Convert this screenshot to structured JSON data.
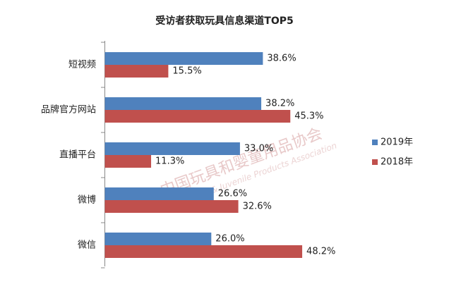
{
  "chart_data": {
    "type": "hbar",
    "title": "受访者获取玩具信息渠道TOP5",
    "categories": [
      "短视频",
      "品牌官方网站",
      "直播平台",
      "微博",
      "微信"
    ],
    "series": [
      {
        "name": "2019年",
        "color": "#4f81bd",
        "values": [
          38.6,
          38.2,
          33.0,
          26.6,
          26.0
        ],
        "value_labels": [
          "38.6%",
          "38.2%",
          "33.0%",
          "26.6%",
          "26.0%"
        ]
      },
      {
        "name": "2018年",
        "color": "#c0504d",
        "values": [
          15.5,
          45.3,
          11.3,
          32.6,
          48.2
        ],
        "value_labels": [
          "15.5%",
          "45.3%",
          "11.3%",
          "32.6%",
          "48.2%"
        ]
      }
    ],
    "legend": "right",
    "watermark": [
      "中国玩具和婴童用品协会",
      "China Toy & Juvenile Products Association"
    ]
  }
}
